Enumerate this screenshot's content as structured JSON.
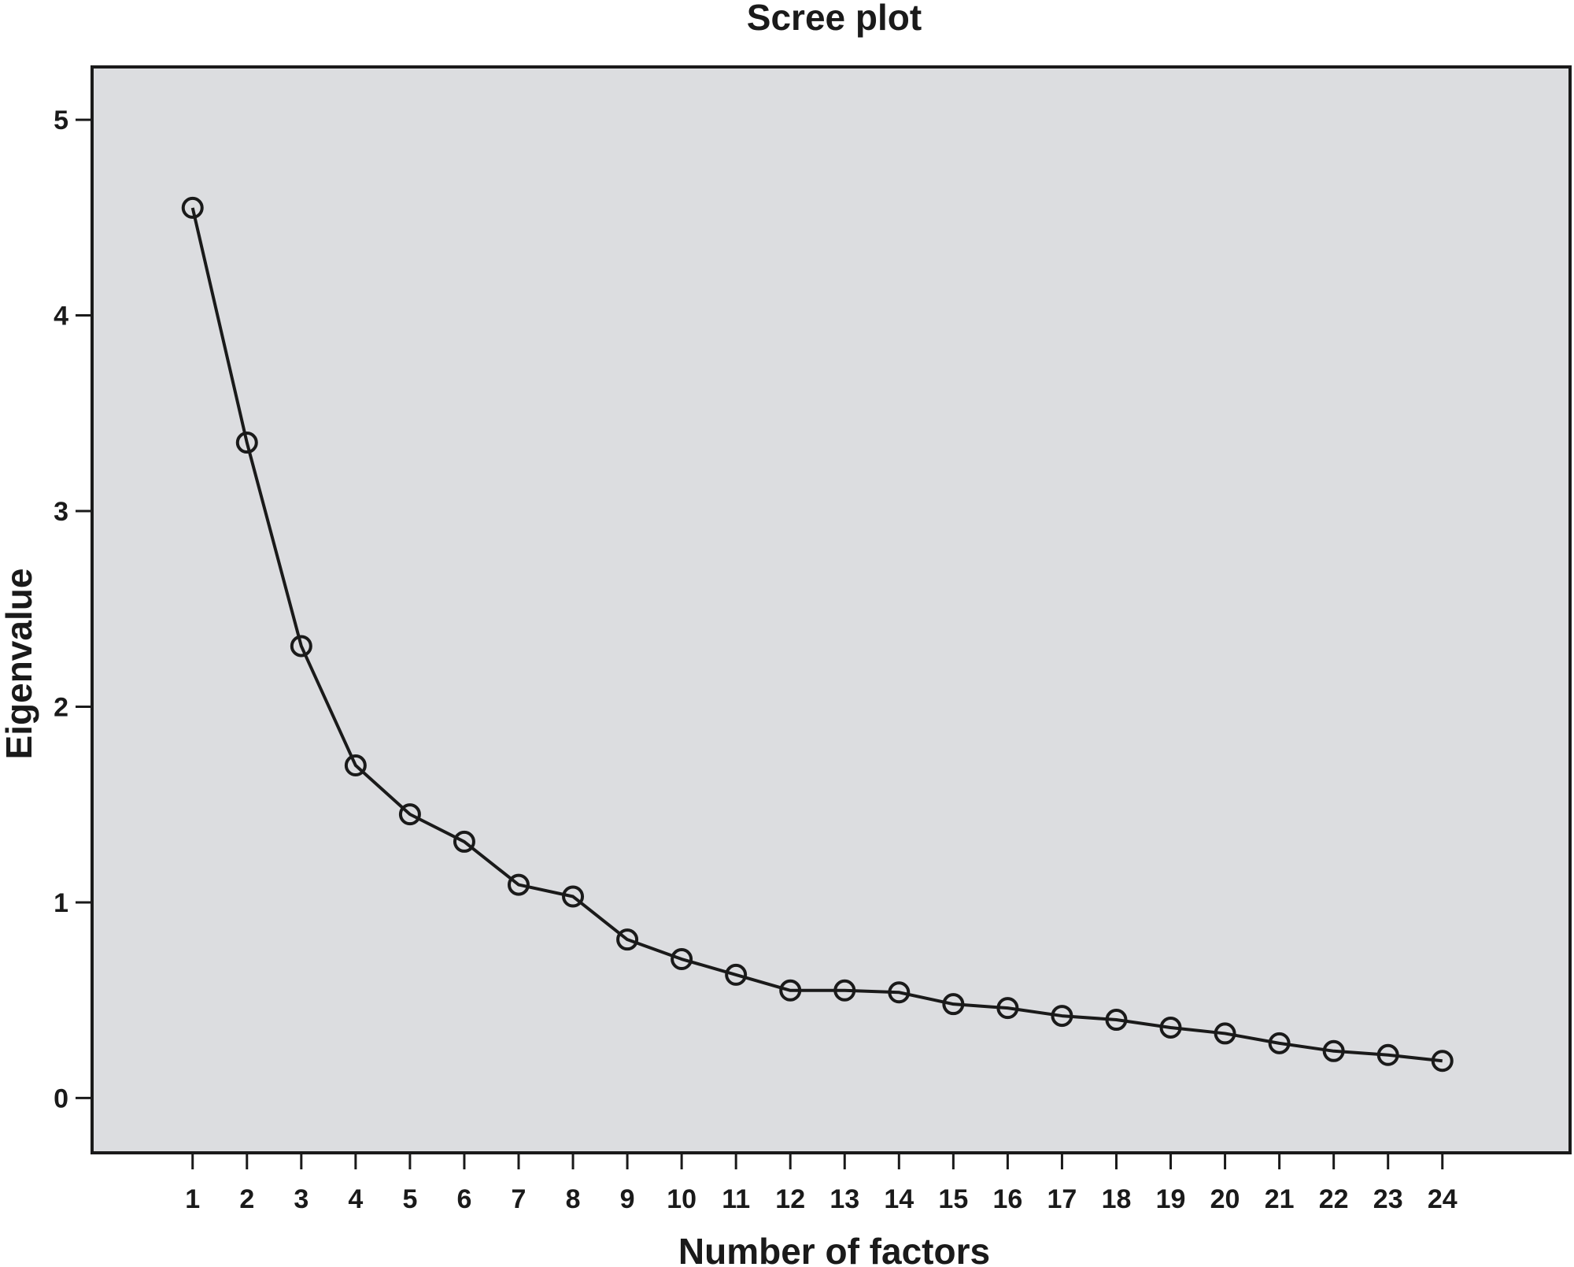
{
  "colors": {
    "plot_background": "#dcdde0",
    "line": "#1a1a1a",
    "marker_stroke": "#1a1a1a"
  },
  "chart_data": {
    "type": "line",
    "title": "Scree plot",
    "xlabel": "Number of factors",
    "ylabel": "Eigenvalue",
    "x": [
      1,
      2,
      3,
      4,
      5,
      6,
      7,
      8,
      9,
      10,
      11,
      12,
      13,
      14,
      15,
      16,
      17,
      18,
      19,
      20,
      21,
      22,
      23,
      24
    ],
    "x_ticks": [
      "1",
      "2",
      "3",
      "4",
      "5",
      "6",
      "7",
      "8",
      "9",
      "10",
      "11",
      "12",
      "13",
      "14",
      "15",
      "16",
      "17",
      "18",
      "19",
      "20",
      "21",
      "22",
      "23",
      "24"
    ],
    "y_ticks": [
      "0",
      "1",
      "2",
      "3",
      "4",
      "5"
    ],
    "xlim": [
      -0.85,
      26.35
    ],
    "ylim": [
      -0.28,
      5.27
    ],
    "grid": false,
    "marker": "open-circle",
    "series": [
      {
        "values": [
          4.55,
          3.35,
          2.31,
          1.7,
          1.45,
          1.31,
          1.09,
          1.03,
          0.81,
          0.71,
          0.63,
          0.55,
          0.55,
          0.54,
          0.48,
          0.46,
          0.42,
          0.4,
          0.36,
          0.33,
          0.28,
          0.24,
          0.22,
          0.19
        ]
      }
    ]
  }
}
